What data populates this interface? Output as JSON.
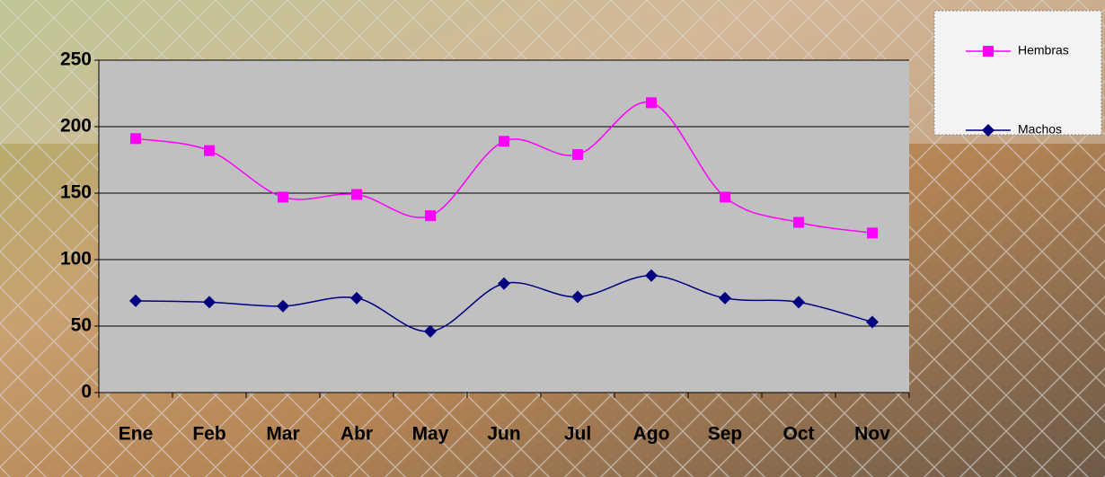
{
  "chart_data": {
    "type": "line",
    "categories": [
      "Ene",
      "Feb",
      "Mar",
      "Abr",
      "May",
      "Jun",
      "Jul",
      "Ago",
      "Sep",
      "Oct",
      "Nov"
    ],
    "series": [
      {
        "name": "Hembras",
        "color": "#ff00ff",
        "marker": "square",
        "values": [
          191,
          182,
          147,
          149,
          133,
          189,
          179,
          218,
          147,
          128,
          120
        ]
      },
      {
        "name": "Machos",
        "color": "#000080",
        "marker": "diamond",
        "values": [
          69,
          68,
          65,
          71,
          46,
          82,
          72,
          88,
          71,
          68,
          53
        ]
      }
    ],
    "ylim": [
      0,
      250
    ],
    "yticks": [
      0,
      50,
      100,
      150,
      200,
      250
    ],
    "grid": true,
    "smooth": true
  }
}
